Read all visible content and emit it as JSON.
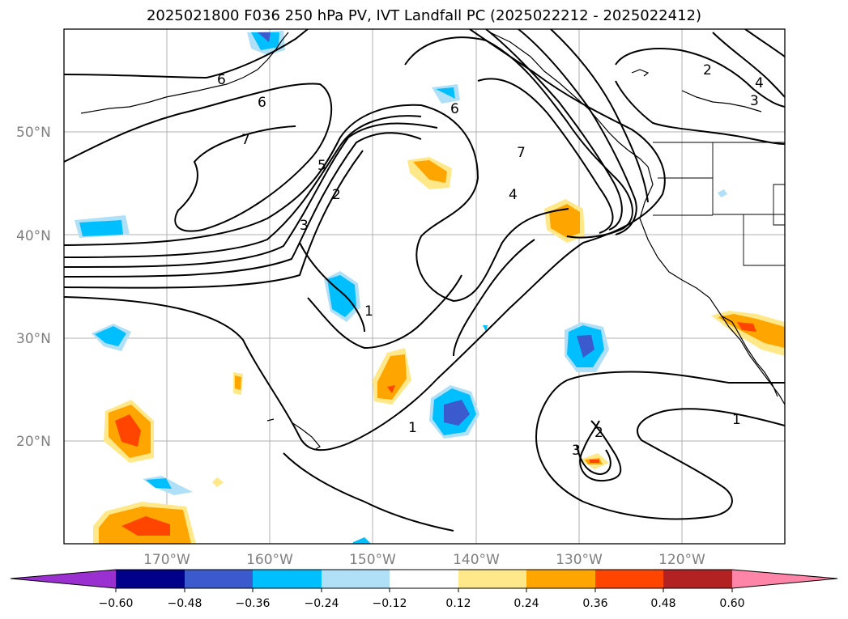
{
  "title": "2025021800 F036 250 hPa PV, IVT Landfall PC (2025022212 - 2025022412)",
  "map": {
    "lon_range": [
      -180,
      -110
    ],
    "lat_range": [
      10,
      60
    ],
    "lat_ticks": [
      "20°N",
      "30°N",
      "40°N",
      "50°N"
    ],
    "lon_ticks": [
      "170°W",
      "160°W",
      "150°W",
      "140°W",
      "130°W",
      "120°W"
    ],
    "contour_labels": [
      "6",
      "6",
      "7",
      "5",
      "2",
      "3",
      "1",
      "6",
      "7",
      "4",
      "2",
      "4",
      "3",
      "1",
      "2",
      "3",
      "1"
    ]
  },
  "colorbar": {
    "ticks": [
      "−0.60",
      "−0.48",
      "−0.36",
      "−0.24",
      "−0.12",
      "0.12",
      "0.24",
      "0.36",
      "0.48",
      "0.60"
    ],
    "colors": [
      "#9b30d0",
      "#00008b",
      "#3a5acd",
      "#00bfff",
      "#b0e0f8",
      "#ffffff",
      "#ffe88a",
      "#ffa500",
      "#ff4500",
      "#b22222",
      "#ff85a8"
    ]
  }
}
